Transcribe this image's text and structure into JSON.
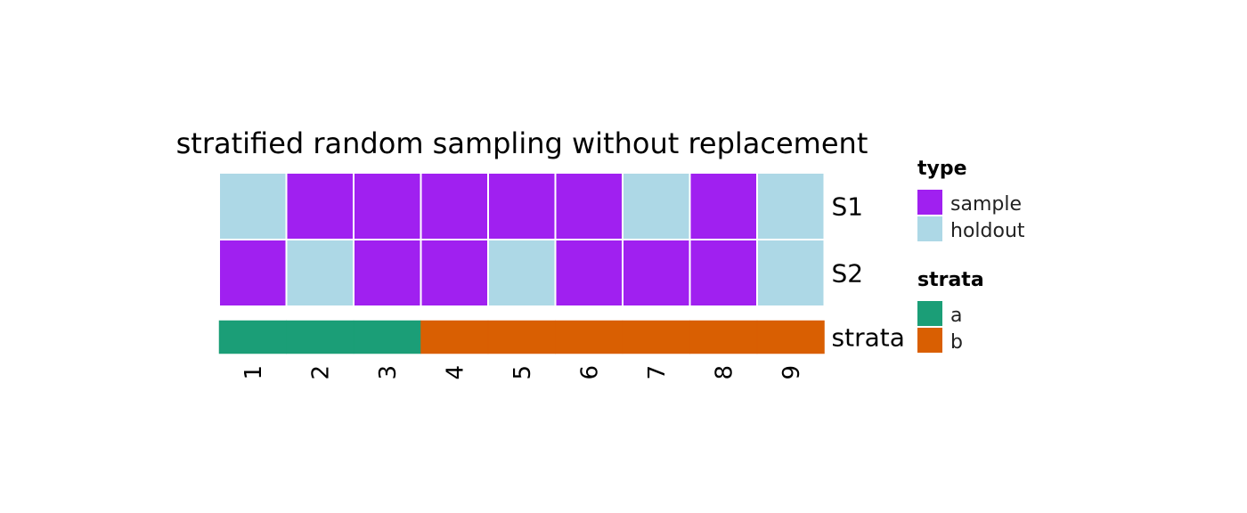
{
  "chart_data": {
    "type": "heatmap",
    "title": "stratified random sampling without replacement",
    "columns": [
      "1",
      "2",
      "3",
      "4",
      "5",
      "6",
      "7",
      "8",
      "9"
    ],
    "rows": [
      {
        "name": "S1",
        "values": [
          "holdout",
          "sample",
          "sample",
          "sample",
          "sample",
          "sample",
          "holdout",
          "sample",
          "holdout"
        ]
      },
      {
        "name": "S2",
        "values": [
          "sample",
          "holdout",
          "sample",
          "sample",
          "holdout",
          "sample",
          "sample",
          "sample",
          "holdout"
        ]
      }
    ],
    "strata_row": {
      "name": "strata",
      "values": [
        "a",
        "a",
        "a",
        "b",
        "b",
        "b",
        "b",
        "b",
        "b"
      ]
    },
    "legends": [
      {
        "title": "type",
        "entries": [
          {
            "label": "sample",
            "color": "#A020F0"
          },
          {
            "label": "holdout",
            "color": "#ADD8E6"
          }
        ]
      },
      {
        "title": "strata",
        "entries": [
          {
            "label": "a",
            "color": "#1B9E77"
          },
          {
            "label": "b",
            "color": "#D95F02"
          }
        ]
      }
    ]
  }
}
